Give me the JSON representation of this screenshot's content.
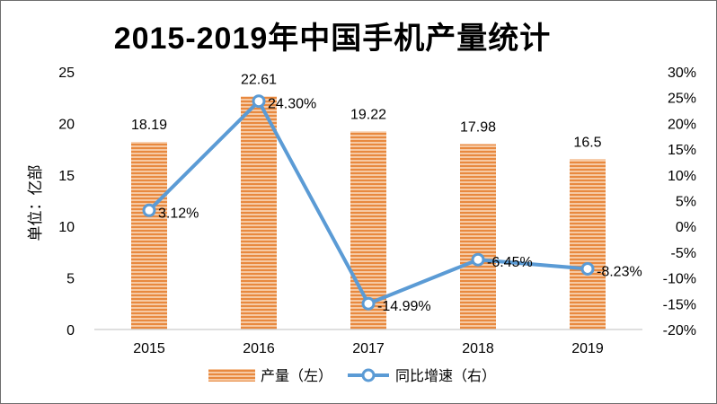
{
  "chart_data": {
    "type": "bar",
    "title": "2015-2019年中国手机产量统计",
    "categories": [
      "2015",
      "2016",
      "2017",
      "2018",
      "2019"
    ],
    "ylabel_left": "单位：亿部",
    "ylim_left": [
      0,
      25
    ],
    "yticks_left": [
      "0",
      "5",
      "10",
      "15",
      "20",
      "25"
    ],
    "ylim_right": [
      -20,
      30
    ],
    "yticks_right": [
      "-20%",
      "-15%",
      "-10%",
      "-5%",
      "0%",
      "5%",
      "10%",
      "15%",
      "20%",
      "25%",
      "30%"
    ],
    "grid": false,
    "legend_position": "bottom",
    "series": [
      {
        "name": "产量（左）",
        "type": "bar",
        "axis": "left",
        "color": "#e8893f",
        "values": [
          18.19,
          22.61,
          19.22,
          17.98,
          16.5
        ],
        "labels": [
          "18.19",
          "22.61",
          "19.22",
          "17.98",
          "16.5"
        ]
      },
      {
        "name": "同比增速（右）",
        "type": "line",
        "axis": "right",
        "color": "#5b9bd5",
        "values": [
          3.12,
          24.3,
          -14.99,
          -6.45,
          -8.23
        ],
        "labels": [
          "3.12%",
          "24.30%",
          "-14.99%",
          "-6.45%",
          "-8.23%"
        ]
      }
    ]
  }
}
